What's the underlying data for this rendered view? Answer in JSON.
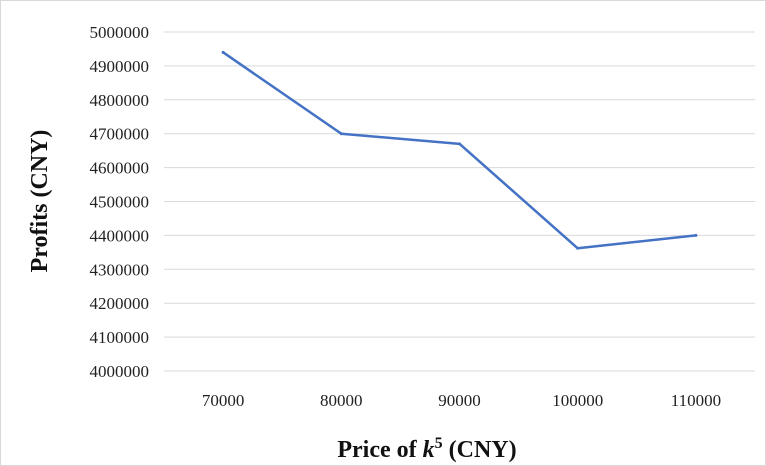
{
  "chart_data": {
    "type": "line",
    "title": "",
    "xlabel_prefix": "Price of ",
    "xlabel_var": "k",
    "xlabel_sup": "5",
    "xlabel_suffix": " (CNY)",
    "ylabel": "Profits (CNY)",
    "categories": [
      "70000",
      "80000",
      "90000",
      "100000",
      "110000"
    ],
    "series": [
      {
        "values": [
          4940000,
          4700000,
          4670000,
          4362000,
          4400000
        ],
        "color": "#4472C4"
      }
    ],
    "ylim": [
      4000000,
      5000000
    ],
    "yticks": [
      "4000000",
      "4100000",
      "4200000",
      "4300000",
      "4400000",
      "4500000",
      "4600000",
      "4700000",
      "4800000",
      "4900000",
      "5000000"
    ],
    "grid": true,
    "legend": "none"
  }
}
